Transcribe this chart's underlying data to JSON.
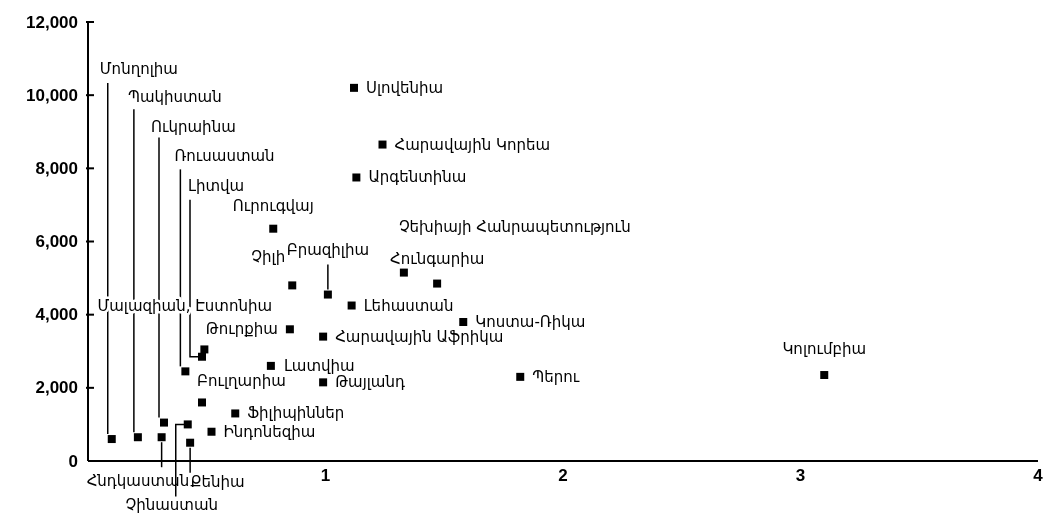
{
  "chart_data": {
    "type": "scatter",
    "marker": "square",
    "legend": false,
    "grid": false,
    "xlim": [
      0,
      4
    ],
    "xticks": [
      1,
      2,
      3,
      4
    ],
    "ylim": [
      0,
      12000
    ],
    "yticks": [
      {
        "value": 0,
        "label": "0"
      },
      {
        "value": 2000,
        "label": "2,000"
      },
      {
        "value": 4000,
        "label": "4,000"
      },
      {
        "value": 6000,
        "label": "6,000"
      },
      {
        "value": 8000,
        "label": "8,000"
      },
      {
        "value": 10000,
        "label": "10,000"
      },
      {
        "value": 12000,
        "label": "12,000"
      }
    ],
    "series": [
      {
        "color": "#000000",
        "x": [
          0.1,
          0.21,
          0.31,
          0.32,
          0.42,
          0.43,
          0.41,
          0.48,
          0.49,
          0.48,
          0.52,
          0.62,
          0.77,
          0.99,
          0.85,
          0.99,
          0.86,
          1.01,
          1.11,
          0.78,
          1.13,
          1.12,
          1.24,
          1.33,
          1.47,
          1.58,
          1.82,
          3.1
        ],
        "values": [
          600,
          650,
          650,
          1050,
          1000,
          500,
          2450,
          2850,
          3050,
          1600,
          800,
          1300,
          2600,
          2150,
          3600,
          3400,
          4800,
          4550,
          4250,
          6350,
          7750,
          10200,
          8650,
          5150,
          4850,
          3800,
          2300,
          2350
        ]
      }
    ],
    "annotations": [
      {
        "text": "Մոնղոլիա",
        "x": 0.1,
        "y": 600
      },
      {
        "text": "Պակիստան",
        "x": 0.21,
        "y": 650
      },
      {
        "text": "Հնդկաստան",
        "x": 0.31,
        "y": 650
      },
      {
        "text": "Ուկրաինա",
        "x": 0.32,
        "y": 1050
      },
      {
        "text": "Չինաստան",
        "x": 0.42,
        "y": 1000
      },
      {
        "text": "Քենիա",
        "x": 0.43,
        "y": 500
      },
      {
        "text": "Ռուսաստան",
        "x": 0.41,
        "y": 2450
      },
      {
        "text": "Լիտվա",
        "x": 0.48,
        "y": 2850
      },
      {
        "text": "Մալազիան, Էստոնիա",
        "x": 0.49,
        "y": 3050
      },
      {
        "text": "Բուլղարիա",
        "x": 0.48,
        "y": 1600
      },
      {
        "text": "Ինդոնեզիա",
        "x": 0.52,
        "y": 800
      },
      {
        "text": "Ֆիլիպիններ",
        "x": 0.62,
        "y": 1300
      },
      {
        "text": "Լատվիա",
        "x": 0.77,
        "y": 2600
      },
      {
        "text": "Թայլանդ",
        "x": 0.99,
        "y": 2150
      },
      {
        "text": "Թուրքիա",
        "x": 0.85,
        "y": 3600
      },
      {
        "text": "Հարավային Աֆրիկա",
        "x": 0.99,
        "y": 3400
      },
      {
        "text": "Չիլի",
        "x": 0.86,
        "y": 4800
      },
      {
        "text": "Բրազիլիա",
        "x": 1.01,
        "y": 4550
      },
      {
        "text": "Լեհաստան",
        "x": 1.11,
        "y": 4250
      },
      {
        "text": "Ուրուգվայ",
        "x": 0.78,
        "y": 6350
      },
      {
        "text": "Արգենտինա",
        "x": 1.13,
        "y": 7750
      },
      {
        "text": "Սլովենիա",
        "x": 1.12,
        "y": 10200
      },
      {
        "text": "Հարավային Կորեա",
        "x": 1.24,
        "y": 8650
      },
      {
        "text": "Չեխիայի Հանրապետություն",
        "x": 1.33,
        "y": 5150
      },
      {
        "text": "Հունգարիա",
        "x": 1.47,
        "y": 4850
      },
      {
        "text": "Կոստա-Ռիկա",
        "x": 1.58,
        "y": 3800
      },
      {
        "text": "Պերու",
        "x": 1.82,
        "y": 2300
      },
      {
        "text": "Կոլումբիա",
        "x": 3.1,
        "y": 2350
      }
    ]
  }
}
